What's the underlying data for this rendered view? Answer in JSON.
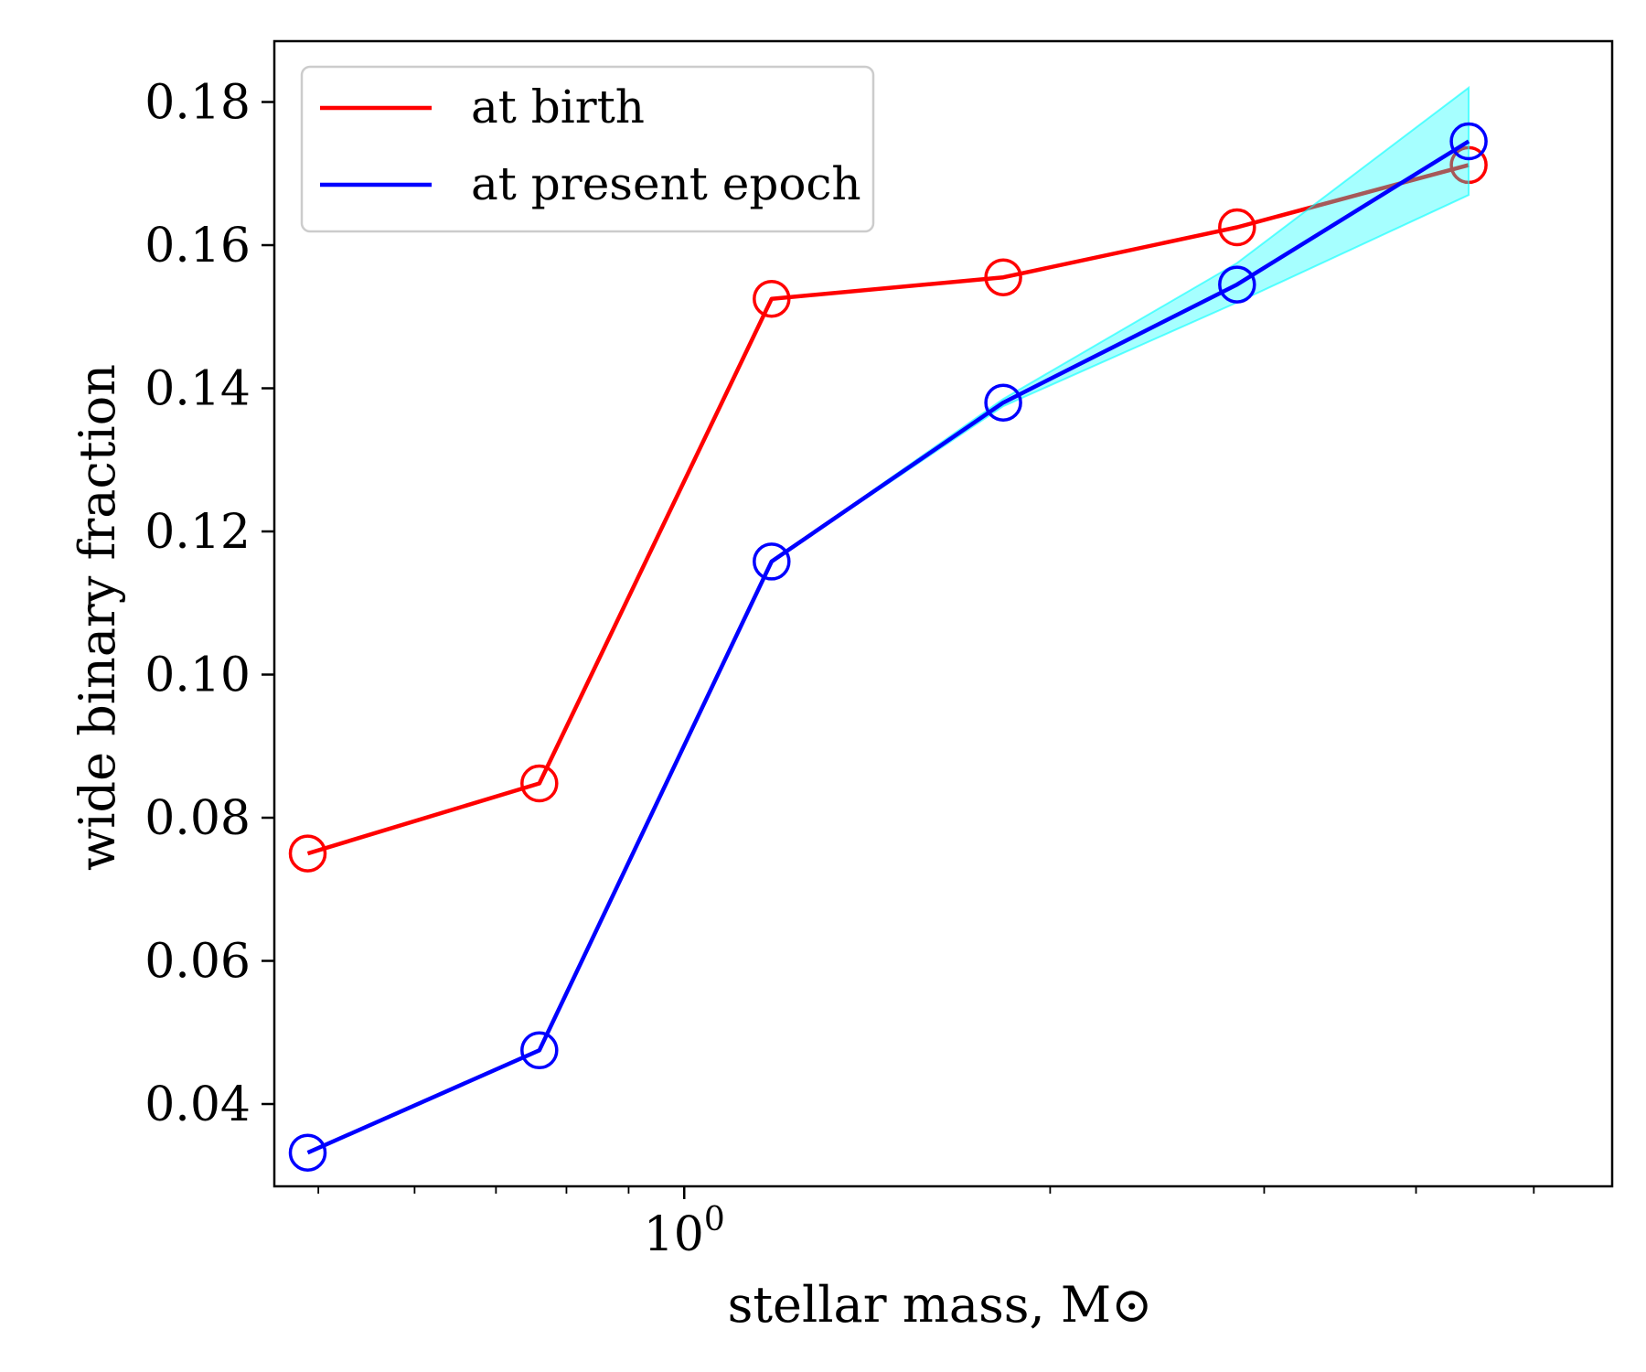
{
  "chart_data": {
    "type": "line",
    "title": "",
    "xlabel": "stellar mass, M⊙",
    "ylabel": "wide binary fraction",
    "xscale": "log",
    "xlim": [
      0.46,
      5.8
    ],
    "ylim": [
      0.0285,
      0.1885
    ],
    "x_major_ticks": [
      {
        "value": 1,
        "base": "10",
        "exponent": "0"
      }
    ],
    "x_minor_ticks": [
      0.5,
      0.6,
      0.7,
      0.8,
      0.9,
      2,
      3,
      4,
      5
    ],
    "y_ticks": [
      0.04,
      0.06,
      0.08,
      0.1,
      0.12,
      0.14,
      0.16,
      0.18
    ],
    "y_tick_labels": [
      "0.04",
      "0.06",
      "0.08",
      "0.10",
      "0.12",
      "0.14",
      "0.16",
      "0.18"
    ],
    "x": [
      0.49,
      0.76,
      1.18,
      1.83,
      2.85,
      4.42
    ],
    "series": [
      {
        "name": "at birth",
        "color": "#ff0000",
        "marker": "open-circle",
        "values": [
          0.075,
          0.0848,
          0.1525,
          0.1555,
          0.1625,
          0.1712
        ]
      },
      {
        "name": "at present epoch",
        "color": "#0000ff",
        "marker": "open-circle",
        "values": [
          0.0332,
          0.0475,
          0.1158,
          0.138,
          0.1545,
          0.1745
        ],
        "band_color": "#00ffff",
        "band_lower": [
          0.0332,
          0.0475,
          0.1158,
          0.1375,
          0.152,
          0.167
        ],
        "band_upper": [
          0.0332,
          0.0475,
          0.1158,
          0.1385,
          0.1575,
          0.182
        ]
      }
    ],
    "grid": false,
    "legend_position": "top-left"
  }
}
